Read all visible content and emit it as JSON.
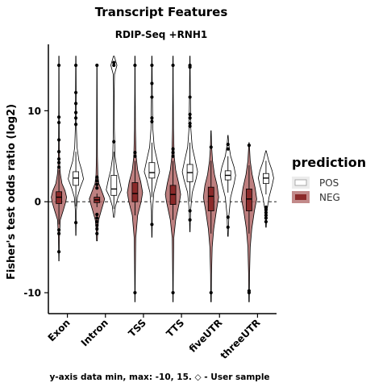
{
  "chart_data": {
    "type": "violin",
    "title": "Transcript Features",
    "subtitle": "RDIP-Seq +RNH1",
    "xlabel": "",
    "ylabel": "Fisher's test odds ratio (log2)",
    "ylim": [
      -12.3,
      17.3
    ],
    "yticks": [
      -10,
      0,
      10
    ],
    "reference_line": 0,
    "grid": false,
    "caption": "y-axis data min, max: -10, 15. ◇ - User sample",
    "legend": {
      "title": "prediction",
      "position": "right",
      "entries": [
        {
          "label": "POS",
          "color": "#ffffff"
        },
        {
          "label": "NEG",
          "color": "#8b2a2a"
        }
      ]
    },
    "categories": [
      "Exon",
      "Intron",
      "TSS",
      "TTS",
      "fiveUTR",
      "threeUTR"
    ],
    "series": [
      {
        "name": "NEG",
        "color": "#8b2a2a",
        "groups": [
          {
            "min": -6.5,
            "max": 16,
            "q1": -0.2,
            "median": 0.5,
            "q3": 1.1,
            "whisker": [
              -2.5,
              3.5
            ],
            "outliers": [
              -5.5,
              -3.5,
              -3.1,
              3.8,
              4.3,
              4.7,
              5.5,
              6.8,
              8.7,
              9.3,
              15
            ],
            "density": [
              [
                -6.5,
                0.02
              ],
              [
                -4,
                0.06
              ],
              [
                -2,
                0.18
              ],
              [
                -1,
                0.55
              ],
              [
                0,
                0.9
              ],
              [
                0.5,
                1
              ],
              [
                1.2,
                0.8
              ],
              [
                2,
                0.4
              ],
              [
                3,
                0.2
              ],
              [
                4,
                0.1
              ],
              [
                6,
                0.05
              ],
              [
                10,
                0.03
              ],
              [
                16,
                0.02
              ]
            ]
          },
          {
            "min": -4.3,
            "max": 15,
            "q1": -0.1,
            "median": 0.2,
            "q3": 0.5,
            "whisker": [
              -0.6,
              0.9
            ],
            "outliers": [
              -3.5,
              -3,
              -2.6,
              -2.2,
              -1.8,
              -1.4,
              1.5,
              1.9,
              2.3,
              2.7,
              15
            ],
            "density": [
              [
                -4.3,
                0.05
              ],
              [
                -3,
                0.1
              ],
              [
                -2,
                0.22
              ],
              [
                -1,
                0.55
              ],
              [
                0,
                0.9
              ],
              [
                0.3,
                1
              ],
              [
                1,
                0.7
              ],
              [
                2,
                0.25
              ],
              [
                3,
                0.12
              ],
              [
                5,
                0.06
              ],
              [
                8,
                0.04
              ],
              [
                15,
                0.02
              ]
            ]
          },
          {
            "min": -11,
            "max": 16,
            "q1": 0,
            "median": 0.9,
            "q3": 2.1,
            "whisker": [
              -1.5,
              4.5
            ],
            "outliers": [
              -10,
              5,
              5.4,
              15
            ],
            "density": [
              [
                -11,
                0.02
              ],
              [
                -8,
                0.04
              ],
              [
                -4,
                0.1
              ],
              [
                -1.5,
                0.35
              ],
              [
                0,
                0.8
              ],
              [
                1,
                1
              ],
              [
                2.2,
                0.75
              ],
              [
                3.5,
                0.35
              ],
              [
                5,
                0.15
              ],
              [
                8,
                0.06
              ],
              [
                12,
                0.03
              ],
              [
                16,
                0.02
              ]
            ]
          },
          {
            "min": -11,
            "max": 16,
            "q1": -0.3,
            "median": 0.8,
            "q3": 1.8,
            "whisker": [
              -2,
              4.5
            ],
            "outliers": [
              -10,
              5,
              5.4,
              5.8,
              15
            ],
            "density": [
              [
                -11,
                0.02
              ],
              [
                -8,
                0.04
              ],
              [
                -4,
                0.1
              ],
              [
                -2,
                0.35
              ],
              [
                0,
                0.85
              ],
              [
                0.8,
                1
              ],
              [
                2,
                0.75
              ],
              [
                3.5,
                0.35
              ],
              [
                5,
                0.15
              ],
              [
                8,
                0.06
              ],
              [
                12,
                0.03
              ],
              [
                16,
                0.02
              ]
            ]
          },
          {
            "min": -11,
            "max": 7.8,
            "q1": -1,
            "median": 0.6,
            "q3": 1.6,
            "whisker": [
              -3.5,
              4.5
            ],
            "outliers": [
              -10,
              6
            ],
            "density": [
              [
                -11,
                0.03
              ],
              [
                -8,
                0.06
              ],
              [
                -5,
                0.15
              ],
              [
                -3,
                0.35
              ],
              [
                -1,
                0.7
              ],
              [
                0.5,
                1
              ],
              [
                1.8,
                0.8
              ],
              [
                3,
                0.45
              ],
              [
                4.5,
                0.2
              ],
              [
                6,
                0.08
              ],
              [
                7.8,
                0.02
              ]
            ]
          },
          {
            "min": -11,
            "max": 6.5,
            "q1": -1,
            "median": 0.3,
            "q3": 1.4,
            "whisker": [
              -3.5,
              4
            ],
            "outliers": [
              -10,
              -9.8,
              6.2
            ],
            "density": [
              [
                -11,
                0.03
              ],
              [
                -8,
                0.06
              ],
              [
                -5,
                0.15
              ],
              [
                -3,
                0.35
              ],
              [
                -1,
                0.7
              ],
              [
                0.3,
                1
              ],
              [
                1.5,
                0.8
              ],
              [
                3,
                0.4
              ],
              [
                4.5,
                0.15
              ],
              [
                6.5,
                0.02
              ]
            ]
          }
        ]
      },
      {
        "name": "POS",
        "color": "#ffffff",
        "groups": [
          {
            "min": -3.7,
            "max": 16,
            "q1": 1.8,
            "median": 2.6,
            "q3": 3.3,
            "whisker": [
              -0.5,
              5.5
            ],
            "outliers": [
              -2.3,
              8.5,
              9.2,
              9.8,
              10.8,
              12,
              15
            ],
            "density": [
              [
                -3.7,
                0.02
              ],
              [
                -1,
                0.06
              ],
              [
                0.5,
                0.2
              ],
              [
                1.5,
                0.55
              ],
              [
                2.5,
                1
              ],
              [
                3.5,
                0.75
              ],
              [
                4.5,
                0.4
              ],
              [
                6,
                0.15
              ],
              [
                8,
                0.07
              ],
              [
                12,
                0.04
              ],
              [
                16,
                0.02
              ]
            ]
          },
          {
            "min": -1.7,
            "max": 16,
            "q1": 0.7,
            "median": 1.4,
            "q3": 2.9,
            "whisker": [
              -0.8,
              5.5
            ],
            "outliers": [
              6.6,
              15,
              15.3
            ],
            "density": [
              [
                -1.7,
                0.05
              ],
              [
                -0.5,
                0.2
              ],
              [
                0.5,
                0.55
              ],
              [
                1.3,
                1
              ],
              [
                2.5,
                0.7
              ],
              [
                3.5,
                0.4
              ],
              [
                5,
                0.15
              ],
              [
                8,
                0.06
              ],
              [
                12,
                0.04
              ],
              [
                14,
                0.08
              ],
              [
                15,
                0.4
              ],
              [
                16,
                0.05
              ]
            ]
          },
          {
            "min": -3.9,
            "max": 16,
            "q1": 2.6,
            "median": 3.2,
            "q3": 4.3,
            "whisker": [
              0.5,
              6.5
            ],
            "outliers": [
              -2.5,
              8.8,
              9.2,
              11.5,
              13,
              15
            ],
            "density": [
              [
                -3.9,
                0.02
              ],
              [
                -1,
                0.06
              ],
              [
                1,
                0.25
              ],
              [
                2.5,
                0.7
              ],
              [
                3.3,
                1
              ],
              [
                4.5,
                0.7
              ],
              [
                6,
                0.3
              ],
              [
                8,
                0.12
              ],
              [
                12,
                0.05
              ],
              [
                16,
                0.02
              ]
            ]
          },
          {
            "min": -3.3,
            "max": 16,
            "q1": 2.2,
            "median": 3.2,
            "q3": 4.1,
            "whisker": [
              0,
              6.5
            ],
            "outliers": [
              -2,
              -1,
              8.3,
              8.6,
              9.2,
              9.6,
              11.5,
              14.8,
              15
            ],
            "density": [
              [
                -3.3,
                0.02
              ],
              [
                -1,
                0.08
              ],
              [
                1,
                0.3
              ],
              [
                2.5,
                0.8
              ],
              [
                3.3,
                1
              ],
              [
                4.5,
                0.7
              ],
              [
                6,
                0.3
              ],
              [
                8,
                0.12
              ],
              [
                12,
                0.05
              ],
              [
                16,
                0.02
              ]
            ]
          },
          {
            "min": -3.8,
            "max": 7.3,
            "q1": 2.4,
            "median": 2.9,
            "q3": 3.4,
            "whisker": [
              1,
              5
            ],
            "outliers": [
              -2.8,
              -1.7,
              5.8,
              6.3
            ],
            "density": [
              [
                -3.8,
                0.03
              ],
              [
                -1.5,
                0.12
              ],
              [
                0.5,
                0.35
              ],
              [
                2,
                0.8
              ],
              [
                2.9,
                1
              ],
              [
                3.8,
                0.8
              ],
              [
                5,
                0.35
              ],
              [
                6.2,
                0.12
              ],
              [
                7.3,
                0.02
              ]
            ]
          },
          {
            "min": -2.8,
            "max": 5.6,
            "q1": 2,
            "median": 2.6,
            "q3": 3.1,
            "whisker": [
              0.8,
              4.5
            ],
            "outliers": [
              -2.2,
              -1.8,
              -1.5,
              -1.2,
              -0.9,
              -0.6
            ],
            "density": [
              [
                -2.8,
                0.03
              ],
              [
                -1,
                0.12
              ],
              [
                0.5,
                0.4
              ],
              [
                1.8,
                0.8
              ],
              [
                2.6,
                1
              ],
              [
                3.4,
                0.8
              ],
              [
                4.5,
                0.35
              ],
              [
                5.6,
                0.03
              ]
            ]
          }
        ]
      }
    ]
  }
}
